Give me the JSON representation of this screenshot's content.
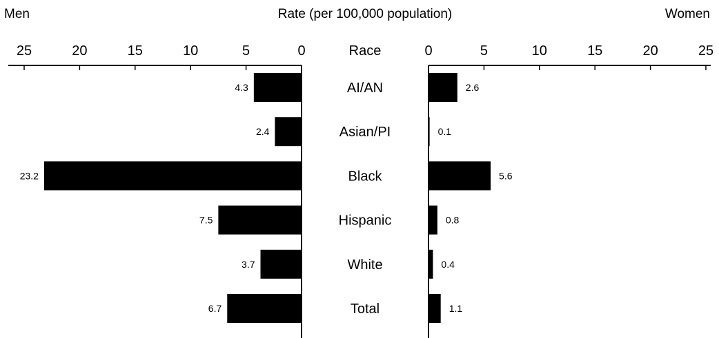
{
  "chart_data": {
    "type": "bar",
    "title": "Rate (per 100,000 population)",
    "left_label": "Men",
    "right_label": "Women",
    "category_header": "Race",
    "categories": [
      "AI/AN",
      "Asian/PI",
      "Black",
      "Hispanic",
      "White",
      "Total"
    ],
    "series": [
      {
        "name": "Men",
        "values": [
          4.3,
          2.4,
          23.2,
          7.5,
          3.7,
          6.7
        ],
        "labels": [
          "4.3",
          "2.4",
          "23.2",
          "7.5",
          "3.7",
          "6.7"
        ]
      },
      {
        "name": "Women",
        "values": [
          2.6,
          0.1,
          5.6,
          0.8,
          0.4,
          1.1
        ],
        "labels": [
          "2.6",
          "0.1",
          "5.6",
          "0.8",
          "0.4",
          "1.1"
        ]
      }
    ],
    "ticks": [
      0,
      5,
      10,
      15,
      20,
      25
    ],
    "tick_labels": [
      "0",
      "5",
      "10",
      "15",
      "20",
      "25"
    ],
    "xlim": [
      0,
      25
    ],
    "bar_color": "#000000",
    "grid": false,
    "orientation": "horizontal"
  }
}
